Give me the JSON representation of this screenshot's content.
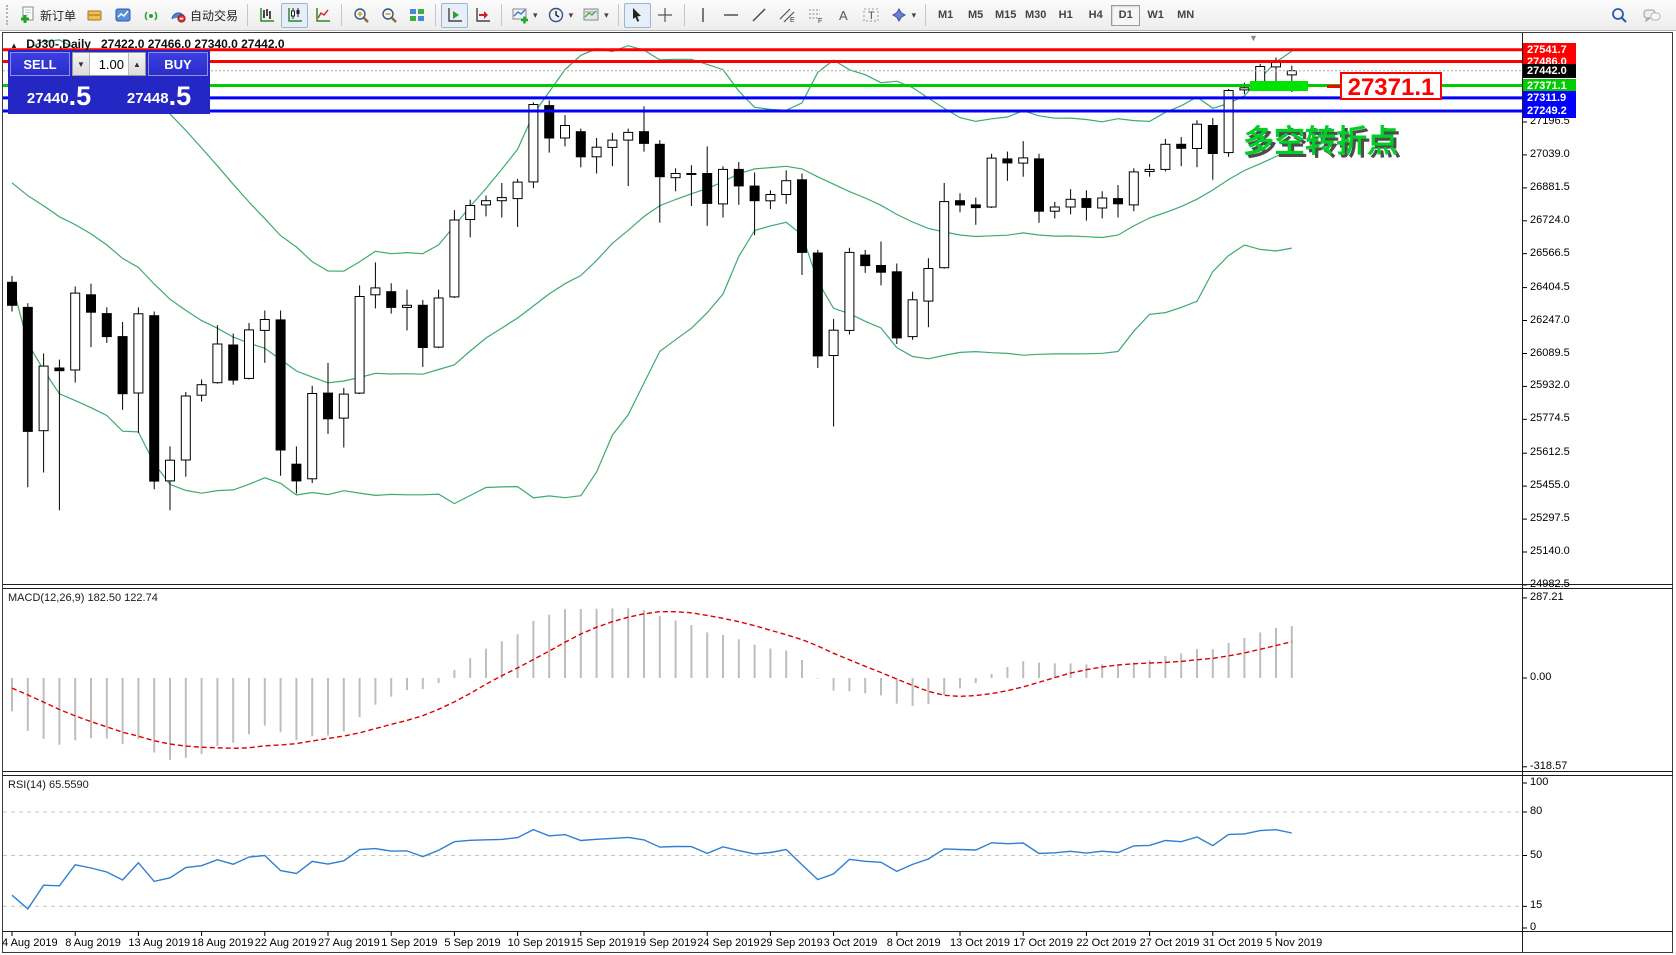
{
  "toolbar": {
    "new_order_label": "新订单",
    "autotrading_label": "自动交易",
    "timeframes": [
      "M1",
      "M5",
      "M15",
      "M30",
      "H1",
      "H4",
      "D1",
      "W1",
      "MN"
    ],
    "active_timeframe": "D1"
  },
  "chart_window": {
    "title": "DJ30-,Daily",
    "ohlc_summary": "27422.0 27466.0 27340.0 27442.0"
  },
  "trade_panel": {
    "sell_label": "SELL",
    "buy_label": "BUY",
    "volume": "1.00",
    "sell_price": "27440",
    "sell_price_big": ".5",
    "buy_price": "27448",
    "buy_price_big": ".5"
  },
  "annotations": {
    "price_callout": "27371.1",
    "note_text": "多空转折点",
    "note_color": "#00cf28",
    "callout_color": "#ff0000",
    "highlight_color": "#00e400"
  },
  "indicators": {
    "macd": {
      "label": "MACD(12,26,9) 182.50 122.74",
      "axis_labels": [
        "287.21",
        "0.00",
        "-318.57"
      ],
      "axis_values": [
        287.21,
        0,
        -318.57
      ]
    },
    "rsi": {
      "label": "RSI(14) 65.5590",
      "axis_values": [
        100,
        80,
        50,
        15,
        0
      ],
      "level_lines": [
        80,
        50,
        15
      ]
    }
  },
  "price_axis_ticks": [
    27196.5,
    27039.0,
    26881.5,
    26724.0,
    26566.5,
    26404.5,
    26247.0,
    26089.5,
    25932.0,
    25774.5,
    25612.5,
    25455.0,
    25297.5,
    25140.0,
    24982.5
  ],
  "time_axis_labels": [
    "4 Aug 2019",
    "8 Aug 2019",
    "13 Aug 2019",
    "18 Aug 2019",
    "22 Aug 2019",
    "27 Aug 2019",
    "1 Sep 2019",
    "5 Sep 2019",
    "10 Sep 2019",
    "15 Sep 2019",
    "19 Sep 2019",
    "24 Sep 2019",
    "29 Sep 2019",
    "3 Oct 2019",
    "8 Oct 2019",
    "13 Oct 2019",
    "17 Oct 2019",
    "22 Oct 2019",
    "27 Oct 2019",
    "31 Oct 2019",
    "5 Nov 2019"
  ],
  "chart_data": {
    "type": "candlestick",
    "symbol": "DJ30-",
    "period": "Daily",
    "ylim": [
      24982.5,
      27541.7
    ],
    "columns": [
      "date",
      "open",
      "high",
      "low",
      "close"
    ],
    "rows": [
      [
        "2019.08.04",
        26430,
        26460,
        26290,
        26320
      ],
      [
        "2019.08.05",
        26310,
        26330,
        25450,
        25717
      ],
      [
        "2019.08.06",
        25720,
        26090,
        25520,
        26029
      ],
      [
        "2019.08.07",
        26020,
        26060,
        25340,
        26007
      ],
      [
        "2019.08.08",
        26010,
        26410,
        25950,
        26378
      ],
      [
        "2019.08.09",
        26370,
        26423,
        26120,
        26287
      ],
      [
        "2019.08.11",
        26280,
        26310,
        26140,
        26170
      ],
      [
        "2019.08.12",
        26170,
        26240,
        25820,
        25897
      ],
      [
        "2019.08.13",
        25900,
        26310,
        25710,
        26279
      ],
      [
        "2019.08.14",
        26270,
        26290,
        25440,
        25479
      ],
      [
        "2019.08.15",
        25480,
        25645,
        25340,
        25579
      ],
      [
        "2019.08.16",
        25580,
        25905,
        25500,
        25886
      ],
      [
        "2019.08.18",
        25890,
        25965,
        25860,
        25940
      ],
      [
        "2019.08.19",
        25950,
        26225,
        25945,
        26135
      ],
      [
        "2019.08.20",
        26130,
        26185,
        25940,
        25962
      ],
      [
        "2019.08.21",
        25970,
        26235,
        25965,
        26202
      ],
      [
        "2019.08.22",
        26200,
        26295,
        26045,
        26252
      ],
      [
        "2019.08.23",
        26250,
        26295,
        25505,
        25628
      ],
      [
        "2019.08.25",
        25560,
        25645,
        25420,
        25480
      ],
      [
        "2019.08.26",
        25490,
        25935,
        25470,
        25898
      ],
      [
        "2019.08.27",
        25900,
        26045,
        25705,
        25777
      ],
      [
        "2019.08.28",
        25780,
        25925,
        25640,
        25895
      ],
      [
        "2019.08.29",
        25900,
        26415,
        25895,
        26362
      ],
      [
        "2019.08.30",
        26370,
        26525,
        26305,
        26403
      ],
      [
        "2019.09.01",
        26385,
        26425,
        26280,
        26310
      ],
      [
        "2019.09.02",
        26310,
        26395,
        26200,
        26320
      ],
      [
        "2019.09.03",
        26320,
        26345,
        26025,
        26118
      ],
      [
        "2019.09.04",
        26120,
        26395,
        26115,
        26355
      ],
      [
        "2019.09.05",
        26360,
        26775,
        26355,
        26728
      ],
      [
        "2019.09.06",
        26730,
        26825,
        26645,
        26797
      ],
      [
        "2019.09.08",
        26800,
        26845,
        26745,
        26820
      ],
      [
        "2019.09.09",
        26820,
        26905,
        26740,
        26835
      ],
      [
        "2019.09.10",
        26830,
        26925,
        26695,
        26909
      ],
      [
        "2019.09.11",
        26910,
        27290,
        26880,
        27280
      ],
      [
        "2019.09.12",
        27275,
        27300,
        27050,
        27120
      ],
      [
        "2019.09.13",
        27120,
        27230,
        27080,
        27180
      ],
      [
        "2019.09.15",
        27150,
        27165,
        26980,
        27030
      ],
      [
        "2019.09.16",
        27030,
        27120,
        26950,
        27076
      ],
      [
        "2019.09.17",
        27075,
        27145,
        26985,
        27110
      ],
      [
        "2019.09.18",
        27110,
        27165,
        26890,
        27147
      ],
      [
        "2019.09.19",
        27150,
        27272,
        27055,
        27094
      ],
      [
        "2019.09.20",
        27090,
        27110,
        26715,
        26935
      ],
      [
        "2019.09.22",
        26930,
        26975,
        26865,
        26950
      ],
      [
        "2019.09.23",
        26950,
        26990,
        26795,
        26949
      ],
      [
        "2019.09.24",
        26950,
        27080,
        26700,
        26807
      ],
      [
        "2019.09.25",
        26805,
        26985,
        26740,
        26970
      ],
      [
        "2019.09.26",
        26970,
        27005,
        26800,
        26891
      ],
      [
        "2019.09.27",
        26890,
        26955,
        26655,
        26820
      ],
      [
        "2019.09.29",
        26820,
        26870,
        26780,
        26850
      ],
      [
        "2019.09.30",
        26850,
        26965,
        26805,
        26916
      ],
      [
        "2019.10.01",
        26920,
        26950,
        26465,
        26573
      ],
      [
        "2019.10.02",
        26570,
        26585,
        26020,
        26078
      ],
      [
        "2019.10.03",
        26080,
        26255,
        25740,
        26201
      ],
      [
        "2019.10.04",
        26200,
        26595,
        26180,
        26573
      ],
      [
        "2019.10.06",
        26560,
        26585,
        26475,
        26510
      ],
      [
        "2019.10.07",
        26510,
        26625,
        26415,
        26478
      ],
      [
        "2019.10.08",
        26480,
        26520,
        26135,
        26164
      ],
      [
        "2019.10.09",
        26170,
        26385,
        26155,
        26346
      ],
      [
        "2019.10.10",
        26340,
        26545,
        26215,
        26496
      ],
      [
        "2019.10.11",
        26500,
        26905,
        26495,
        26816
      ],
      [
        "2019.10.13",
        26820,
        26855,
        26765,
        26800
      ],
      [
        "2019.10.14",
        26800,
        26835,
        26705,
        26787
      ],
      [
        "2019.10.15",
        26790,
        27045,
        26785,
        27024
      ],
      [
        "2019.10.16",
        27020,
        27055,
        26915,
        27001
      ],
      [
        "2019.10.17",
        27000,
        27105,
        26935,
        27025
      ],
      [
        "2019.10.18",
        27020,
        27045,
        26715,
        26770
      ],
      [
        "2019.10.20",
        26770,
        26815,
        26735,
        26790
      ],
      [
        "2019.10.21",
        26790,
        26875,
        26755,
        26827
      ],
      [
        "2019.10.22",
        26830,
        26870,
        26725,
        26788
      ],
      [
        "2019.10.23",
        26785,
        26865,
        26735,
        26833
      ],
      [
        "2019.10.24",
        26830,
        26895,
        26740,
        26805
      ],
      [
        "2019.10.25",
        26800,
        26975,
        26770,
        26958
      ],
      [
        "2019.10.27",
        26960,
        26995,
        26935,
        26970
      ],
      [
        "2019.10.28",
        26970,
        27115,
        26960,
        27090
      ],
      [
        "2019.10.29",
        27090,
        27125,
        26985,
        27071
      ],
      [
        "2019.10.30",
        27070,
        27205,
        26980,
        27186
      ],
      [
        "2019.10.31",
        27180,
        27215,
        26920,
        27046
      ],
      [
        "2019.11.01",
        27050,
        27355,
        27030,
        27347
      ],
      [
        "2019.11.03",
        27350,
        27385,
        27330,
        27360
      ],
      [
        "2019.11.04",
        27360,
        27475,
        27350,
        27462
      ],
      [
        "2019.11.05",
        27460,
        27505,
        27385,
        27490
      ],
      [
        "2019.11.06",
        27422,
        27466,
        27340,
        27442
      ]
    ],
    "levels": [
      {
        "price": 27541.7,
        "label": "27541.7",
        "color": "#ff0000",
        "width": 3
      },
      {
        "price": 27486.0,
        "label": "27486.0",
        "color": "#ff0000",
        "width": 3
      },
      {
        "price": 27371.1,
        "label": "27371.1",
        "color": "#00cc00",
        "width": 3
      },
      {
        "price": 27311.9,
        "label": "27311.9",
        "color": "#0000ff",
        "width": 3
      },
      {
        "price": 27249.2,
        "label": "27249.2",
        "color": "#0000ff",
        "width": 3
      }
    ],
    "current_price": {
      "price": 27442.0,
      "label": "27442.0",
      "line_color": "#aaaaaa",
      "label_bg": "#000000"
    },
    "bollinger": {
      "period": 20,
      "deviation": 2,
      "color": "#3cab6e",
      "prehistory_closes": [
        26900,
        26950,
        27000,
        27060,
        27120,
        27180,
        27220,
        27190,
        27140,
        27080,
        27020,
        26960,
        26910,
        26860,
        26820,
        26780,
        26740,
        26700,
        26583,
        26485
      ]
    },
    "macd": {
      "fast": 12,
      "slow": 26,
      "signal": 9,
      "histogram_color": "#bdbdbd",
      "signal_color": "#dd0000",
      "current_main": 182.5,
      "current_signal": 122.74
    },
    "rsi": {
      "period": 14,
      "color": "#2f7fd1",
      "current": 65.559
    }
  }
}
